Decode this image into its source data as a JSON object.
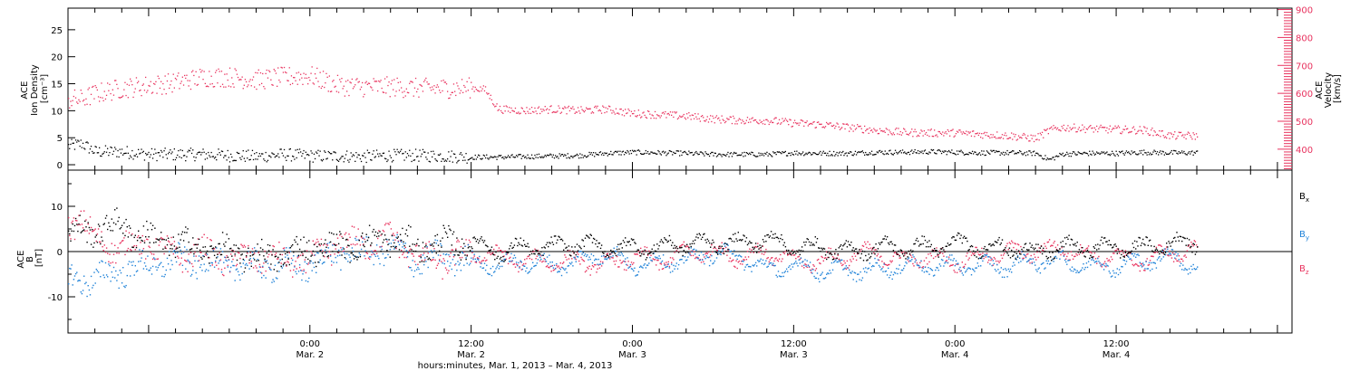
{
  "chart_data": [
    {
      "type": "scatter",
      "panel": "top",
      "ylabel_left": [
        "ACE",
        "Ion Density",
        "[cm⁻³]"
      ],
      "ylabel_right": [
        "ACE",
        "Velocity",
        "[km/s]"
      ],
      "ylim_left": [
        -1,
        29
      ],
      "ylim_right": [
        325,
        905
      ],
      "yticks_left": [
        "0",
        "5",
        "10",
        "15",
        "20",
        "25"
      ],
      "yticks_right": [
        "400",
        "500",
        "600",
        "700",
        "800",
        "900"
      ],
      "colors": {
        "density": "#000000",
        "velocity": "#e8325e"
      },
      "x_range_hours": [
        0,
        84
      ],
      "series": [
        {
          "name": "",
          "axis": "left",
          "color": "#000000",
          "anchors": [
            [
              0,
              3.5
            ],
            [
              1,
              4
            ],
            [
              2,
              2.5
            ],
            [
              4,
              2.5
            ],
            [
              6,
              2
            ],
            [
              8,
              2
            ],
            [
              10,
              2
            ],
            [
              12,
              1.8
            ],
            [
              14,
              1.6
            ],
            [
              16,
              2
            ],
            [
              18,
              1.7
            ],
            [
              20,
              1.7
            ],
            [
              22,
              1.6
            ],
            [
              24,
              1.8
            ],
            [
              26,
              1.8
            ],
            [
              28,
              1.7
            ],
            [
              30,
              1.5
            ],
            [
              32,
              1.5
            ],
            [
              34,
              1.6
            ],
            [
              36,
              1.7
            ],
            [
              38,
              1.8
            ],
            [
              40,
              2.2
            ],
            [
              42,
              2.4
            ],
            [
              44,
              2.3
            ],
            [
              46,
              2.2
            ],
            [
              48,
              2.0
            ],
            [
              50,
              2.0
            ],
            [
              52,
              2.0
            ],
            [
              54,
              2.3
            ],
            [
              56,
              2.2
            ],
            [
              58,
              2.2
            ],
            [
              60,
              2.4
            ],
            [
              62,
              2.4
            ],
            [
              64,
              2.5
            ],
            [
              66,
              2.4
            ],
            [
              68,
              2.3
            ],
            [
              70,
              2.3
            ],
            [
              72,
              2.2
            ],
            [
              73,
              1.0
            ],
            [
              74,
              2.1
            ],
            [
              76,
              2.2
            ],
            [
              78,
              2.2
            ],
            [
              80,
              2.4
            ],
            [
              82,
              2.3
            ],
            [
              84,
              2.3
            ]
          ]
        },
        {
          "name": "",
          "axis": "right",
          "color": "#e8325e",
          "anchors": [
            [
              0,
              580
            ],
            [
              1,
              580
            ],
            [
              2,
              600
            ],
            [
              4,
              620
            ],
            [
              6,
              630
            ],
            [
              8,
              640
            ],
            [
              10,
              660
            ],
            [
              12,
              660
            ],
            [
              14,
              650
            ],
            [
              16,
              660
            ],
            [
              18,
              665
            ],
            [
              20,
              630
            ],
            [
              22,
              625
            ],
            [
              24,
              625
            ],
            [
              26,
              620
            ],
            [
              28,
              620
            ],
            [
              30,
              622
            ],
            [
              31,
              615
            ],
            [
              32,
              545
            ],
            [
              34,
              540
            ],
            [
              36,
              545
            ],
            [
              38,
              540
            ],
            [
              40,
              545
            ],
            [
              42,
              530
            ],
            [
              44,
              525
            ],
            [
              46,
              520
            ],
            [
              48,
              510
            ],
            [
              50,
              505
            ],
            [
              52,
              505
            ],
            [
              54,
              495
            ],
            [
              56,
              490
            ],
            [
              58,
              480
            ],
            [
              60,
              470
            ],
            [
              62,
              462
            ],
            [
              64,
              460
            ],
            [
              66,
              460
            ],
            [
              68,
              455
            ],
            [
              70,
              450
            ],
            [
              72,
              440
            ],
            [
              73,
              470
            ],
            [
              74,
              480
            ],
            [
              76,
              475
            ],
            [
              78,
              472
            ],
            [
              80,
              470
            ],
            [
              82,
              450
            ],
            [
              84,
              450
            ]
          ]
        }
      ]
    },
    {
      "type": "scatter",
      "panel": "bottom",
      "ylabel_left": [
        "ACE",
        "B",
        "[nT]"
      ],
      "ylim": [
        -18,
        18
      ],
      "yticks": [
        "-10",
        "0",
        "10"
      ],
      "legend": [
        {
          "label": "Bx",
          "color": "#000000"
        },
        {
          "label": "By",
          "color": "#1e82d8"
        },
        {
          "label": "Bz",
          "color": "#e8325e"
        }
      ],
      "x_range_hours": [
        0,
        84
      ],
      "series": [
        {
          "name": "Bx",
          "color": "#000000",
          "anchors": [
            [
              0,
              4
            ],
            [
              2,
              5
            ],
            [
              4,
              6
            ],
            [
              6,
              3
            ],
            [
              8,
              2
            ],
            [
              10,
              1
            ],
            [
              12,
              0
            ],
            [
              14,
              -1
            ],
            [
              16,
              -1
            ],
            [
              18,
              1
            ],
            [
              20,
              1
            ],
            [
              22,
              2
            ],
            [
              24,
              3
            ],
            [
              26,
              1
            ],
            [
              28,
              2
            ],
            [
              30,
              2
            ],
            [
              32,
              0
            ],
            [
              34,
              1
            ],
            [
              36,
              1
            ],
            [
              38,
              2
            ],
            [
              40,
              1
            ],
            [
              42,
              1
            ],
            [
              44,
              1
            ],
            [
              46,
              2
            ],
            [
              48,
              2
            ],
            [
              50,
              2
            ],
            [
              52,
              3
            ],
            [
              54,
              1
            ],
            [
              56,
              1
            ],
            [
              58,
              0
            ],
            [
              60,
              1
            ],
            [
              62,
              1
            ],
            [
              64,
              1
            ],
            [
              66,
              2
            ],
            [
              68,
              1
            ],
            [
              70,
              1
            ],
            [
              72,
              0
            ],
            [
              74,
              1
            ],
            [
              76,
              1
            ],
            [
              78,
              1
            ],
            [
              80,
              1
            ],
            [
              82,
              2
            ],
            [
              84,
              2
            ]
          ]
        },
        {
          "name": "By",
          "color": "#1e82d8",
          "anchors": [
            [
              0,
              -6
            ],
            [
              2,
              -6
            ],
            [
              4,
              -4
            ],
            [
              6,
              -3
            ],
            [
              8,
              -2
            ],
            [
              10,
              -2
            ],
            [
              12,
              -3
            ],
            [
              14,
              -3
            ],
            [
              16,
              -3
            ],
            [
              18,
              -3
            ],
            [
              20,
              0
            ],
            [
              22,
              0
            ],
            [
              24,
              1
            ],
            [
              26,
              -2
            ],
            [
              28,
              -1
            ],
            [
              30,
              -2
            ],
            [
              32,
              -3
            ],
            [
              34,
              -2
            ],
            [
              36,
              -3
            ],
            [
              38,
              -2
            ],
            [
              40,
              0
            ],
            [
              42,
              -3
            ],
            [
              44,
              -2
            ],
            [
              46,
              -2
            ],
            [
              48,
              0
            ],
            [
              50,
              -1
            ],
            [
              52,
              -4
            ],
            [
              54,
              -3
            ],
            [
              56,
              -4
            ],
            [
              58,
              -4
            ],
            [
              60,
              -4
            ],
            [
              62,
              -3
            ],
            [
              64,
              -3
            ],
            [
              66,
              -3
            ],
            [
              68,
              -3
            ],
            [
              70,
              -3
            ],
            [
              72,
              -2
            ],
            [
              74,
              -2
            ],
            [
              76,
              -3
            ],
            [
              78,
              -3
            ],
            [
              80,
              -2
            ],
            [
              82,
              -1
            ],
            [
              84,
              -3
            ]
          ]
        },
        {
          "name": "Bz",
          "color": "#e8325e",
          "anchors": [
            [
              0,
              6
            ],
            [
              1,
              8
            ],
            [
              2,
              2
            ],
            [
              4,
              1
            ],
            [
              6,
              2
            ],
            [
              8,
              -1
            ],
            [
              10,
              0
            ],
            [
              12,
              -2
            ],
            [
              14,
              -1
            ],
            [
              16,
              -2
            ],
            [
              18,
              -2
            ],
            [
              20,
              2
            ],
            [
              22,
              2
            ],
            [
              24,
              3
            ],
            [
              26,
              -1
            ],
            [
              28,
              -2
            ],
            [
              30,
              0
            ],
            [
              32,
              -1
            ],
            [
              34,
              -2
            ],
            [
              36,
              -2
            ],
            [
              38,
              -2
            ],
            [
              40,
              -3
            ],
            [
              42,
              -1
            ],
            [
              44,
              -2
            ],
            [
              46,
              0
            ],
            [
              48,
              0
            ],
            [
              50,
              -1
            ],
            [
              52,
              0
            ],
            [
              54,
              -2
            ],
            [
              56,
              -2
            ],
            [
              58,
              -1
            ],
            [
              60,
              0
            ],
            [
              62,
              -2
            ],
            [
              64,
              -1
            ],
            [
              66,
              -2
            ],
            [
              68,
              -1
            ],
            [
              70,
              0
            ],
            [
              72,
              0
            ],
            [
              74,
              1
            ],
            [
              76,
              -1
            ],
            [
              78,
              -1
            ],
            [
              80,
              -2
            ],
            [
              82,
              0
            ],
            [
              84,
              0
            ]
          ]
        }
      ]
    }
  ],
  "xaxis": {
    "ticks": [
      {
        "time": "0:00",
        "date": "Mar. 2",
        "hour": 18
      },
      {
        "time": "12:00",
        "date": "Mar. 2",
        "hour": 30
      },
      {
        "time": "0:00",
        "date": "Mar. 3",
        "hour": 42
      },
      {
        "time": "12:00",
        "date": "Mar. 3",
        "hour": 54
      },
      {
        "time": "0:00",
        "date": "Mar. 4",
        "hour": 66
      },
      {
        "time": "12:00",
        "date": "Mar. 4",
        "hour": 78
      }
    ],
    "title": "hours:minutes, Mar.  1, 2013 – Mar.  4, 2013"
  }
}
